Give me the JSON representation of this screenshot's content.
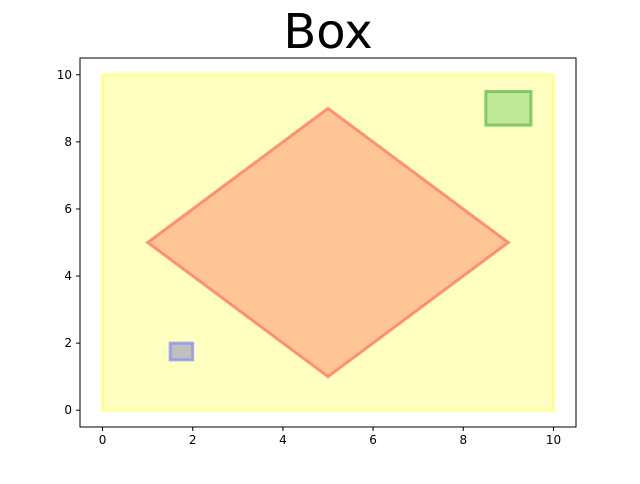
{
  "chart_data": {
    "type": "area",
    "title": "Box",
    "xlabel": "",
    "ylabel": "",
    "xlim": [
      -0.5,
      10.5
    ],
    "ylim": [
      -0.5,
      10.5
    ],
    "xticks": [
      0,
      2,
      4,
      6,
      8,
      10
    ],
    "yticks": [
      0,
      2,
      4,
      6,
      8,
      10
    ],
    "grid": false,
    "shapes": [
      {
        "name": "outer-box",
        "points": [
          [
            0,
            0
          ],
          [
            10,
            0
          ],
          [
            10,
            10
          ],
          [
            0,
            10
          ]
        ],
        "fill": "#ffff66",
        "edge": "#ffff66",
        "alpha": 0.4
      },
      {
        "name": "diamond",
        "points": [
          [
            1,
            5
          ],
          [
            5,
            9
          ],
          [
            9,
            5
          ],
          [
            5,
            1
          ]
        ],
        "fill": "#ff8c66",
        "edge": "#ff6f5c",
        "alpha": 0.5
      },
      {
        "name": "green-box",
        "points": [
          [
            8.5,
            8.5
          ],
          [
            9.5,
            8.5
          ],
          [
            9.5,
            9.5
          ],
          [
            8.5,
            9.5
          ]
        ],
        "fill": "#7fd46a",
        "edge": "#5cb84a",
        "alpha": 0.5
      },
      {
        "name": "blue-box",
        "points": [
          [
            1.5,
            1.5
          ],
          [
            2.0,
            1.5
          ],
          [
            2.0,
            2.0
          ],
          [
            1.5,
            2.0
          ]
        ],
        "fill": "#8c8cbe",
        "edge": "#8c8cf0",
        "alpha": 0.55
      }
    ]
  }
}
